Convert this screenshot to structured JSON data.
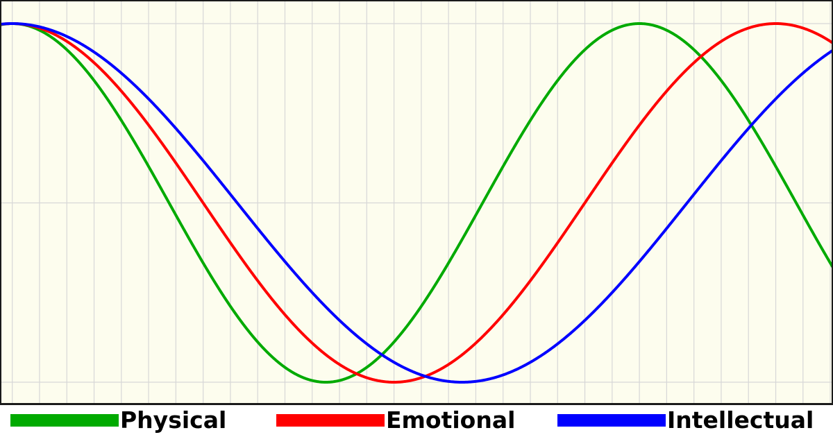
{
  "colors": {
    "background": "#fdfdee",
    "grid": "#d7d7d7",
    "frame": "#1a1a1a",
    "legend_background": "#ffffff"
  },
  "chart_data": {
    "type": "line",
    "title": "",
    "xlabel": "",
    "ylabel": "",
    "xlim": [
      -0.45,
      30.1
    ],
    "ylim": [
      -1,
      1
    ],
    "grid": true,
    "legend_position": "bottom",
    "series": [
      {
        "name": "Physical",
        "period_days": 23,
        "color": "#00aa00"
      },
      {
        "name": "Emotional",
        "period_days": 28,
        "color": "#ff0000"
      },
      {
        "name": "Intellectual",
        "period_days": 33,
        "color": "#0000ff"
      }
    ]
  },
  "legend": {
    "items": [
      {
        "label": "Physical",
        "color": "#00aa00"
      },
      {
        "label": "Emotional",
        "color": "#ff0000"
      },
      {
        "label": "Intellectual",
        "color": "#0000ff"
      }
    ]
  }
}
